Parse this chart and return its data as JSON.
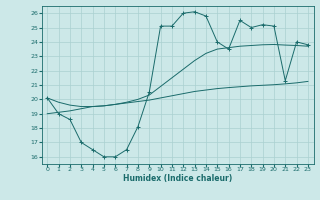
{
  "xlabel": "Humidex (Indice chaleur)",
  "ylabel": "",
  "bg_color": "#cce8e8",
  "line_color": "#1a6b6b",
  "grid_color": "#aad0d0",
  "xlim": [
    -0.5,
    23.5
  ],
  "ylim": [
    15.5,
    26.5
  ],
  "xticks": [
    0,
    1,
    2,
    3,
    4,
    5,
    6,
    7,
    8,
    9,
    10,
    11,
    12,
    13,
    14,
    15,
    16,
    17,
    18,
    19,
    20,
    21,
    22,
    23
  ],
  "yticks": [
    16,
    17,
    18,
    19,
    20,
    21,
    22,
    23,
    24,
    25,
    26
  ],
  "curve1_x": [
    0,
    1,
    2,
    3,
    4,
    5,
    6,
    7,
    8,
    9,
    10,
    11,
    12,
    13,
    14,
    15,
    16,
    17,
    18,
    19,
    20,
    21,
    22,
    23
  ],
  "curve1_y": [
    20.1,
    19.0,
    18.6,
    17.0,
    16.5,
    16.0,
    16.0,
    16.5,
    18.1,
    20.5,
    25.1,
    25.1,
    26.0,
    26.1,
    25.8,
    24.0,
    23.5,
    25.5,
    25.0,
    25.2,
    25.1,
    21.3,
    24.0,
    23.8
  ],
  "curve2_x": [
    0,
    1,
    2,
    3,
    4,
    5,
    6,
    7,
    8,
    9,
    10,
    11,
    12,
    13,
    14,
    15,
    16,
    17,
    18,
    19,
    20,
    21,
    22,
    23
  ],
  "curve2_y": [
    19.0,
    19.1,
    19.2,
    19.35,
    19.5,
    19.55,
    19.65,
    19.75,
    19.85,
    19.95,
    20.1,
    20.25,
    20.4,
    20.55,
    20.65,
    20.75,
    20.82,
    20.88,
    20.94,
    20.98,
    21.02,
    21.08,
    21.15,
    21.25
  ],
  "curve3_x": [
    0,
    1,
    2,
    3,
    4,
    5,
    6,
    7,
    8,
    9,
    10,
    11,
    12,
    13,
    14,
    15,
    16,
    17,
    18,
    19,
    20,
    21,
    22,
    23
  ],
  "curve3_y": [
    20.1,
    19.8,
    19.6,
    19.5,
    19.5,
    19.55,
    19.65,
    19.8,
    20.0,
    20.3,
    20.9,
    21.5,
    22.1,
    22.7,
    23.2,
    23.5,
    23.6,
    23.7,
    23.75,
    23.8,
    23.82,
    23.78,
    23.75,
    23.7
  ]
}
